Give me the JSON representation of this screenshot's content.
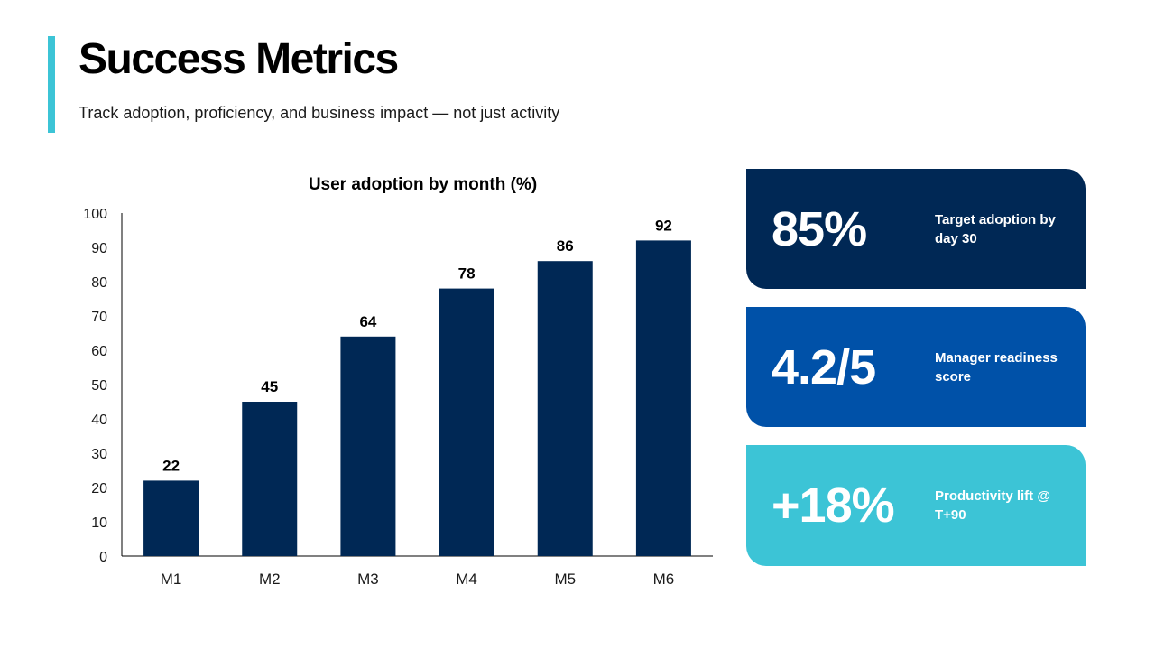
{
  "header": {
    "title": "Success Metrics",
    "subtitle": "Track adoption, proficiency, and business impact — not just activity"
  },
  "chart_data": {
    "type": "bar",
    "title": "User adoption by month (%)",
    "xlabel": "",
    "ylabel": "",
    "categories": [
      "M1",
      "M2",
      "M3",
      "M4",
      "M5",
      "M6"
    ],
    "values": [
      22,
      45,
      64,
      78,
      86,
      92
    ],
    "ylim": [
      0,
      100
    ],
    "yticks": [
      0,
      10,
      20,
      30,
      40,
      50,
      60,
      70,
      80,
      90,
      100
    ],
    "grid": false,
    "legend": "none",
    "data_labels": true,
    "bar_color": "#002855"
  },
  "kpis": [
    {
      "value": "85%",
      "label": "Target adoption by day 30",
      "color": "#002855"
    },
    {
      "value": "4.2/5",
      "label": "Manager readiness score",
      "color": "#0051a8"
    },
    {
      "value": "+18%",
      "label": "Productivity lift @ T+90",
      "color": "#3cc4d6"
    }
  ],
  "theme": {
    "accent": "#3cc4d6"
  }
}
